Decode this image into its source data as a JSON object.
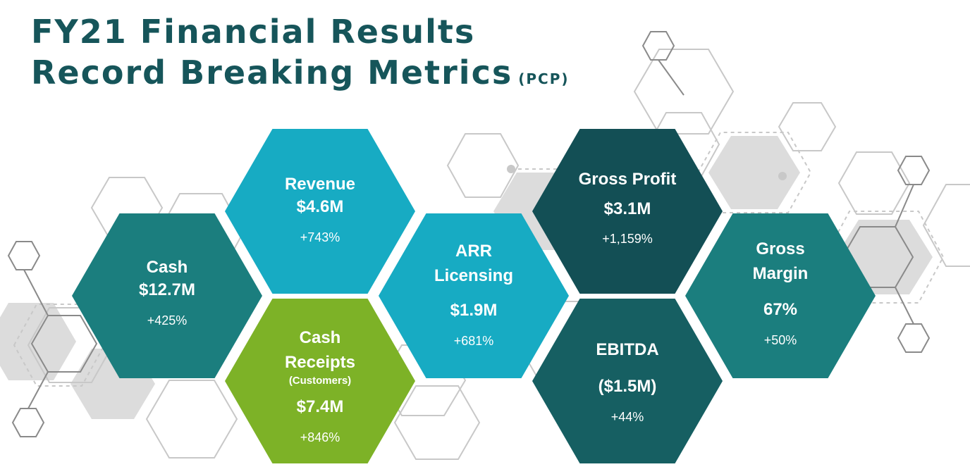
{
  "title": {
    "line1": "FY21 Financial Results",
    "line2": "Record Breaking Metrics",
    "qualifier": "(PCP)"
  },
  "colors": {
    "title": "#16555a",
    "teal": "#1b7e7e",
    "cyan": "#17abc3",
    "green": "#7db227",
    "dark_teal": "#134f55",
    "mid_teal": "#165f62"
  },
  "metrics": {
    "cash": {
      "label": "Cash",
      "value": "$12.7M",
      "change": "+425%"
    },
    "revenue": {
      "label": "Revenue",
      "value": "$4.6M",
      "change": "+743%"
    },
    "cash_receipts": {
      "label_line1": "Cash",
      "label_line2": "Receipts",
      "note": "(Customers)",
      "value": "$7.4M",
      "change": "+846%"
    },
    "arr_licensing": {
      "label_line1": "ARR",
      "label_line2": "Licensing",
      "value": "$1.9M",
      "change": "+681%"
    },
    "gross_profit": {
      "label": "Gross Profit",
      "value": "$3.1M",
      "change": "+1,159%"
    },
    "ebitda": {
      "label": "EBITDA",
      "value": "($1.5M)",
      "change": "+44%"
    },
    "gross_margin": {
      "label_line1": "Gross",
      "label_line2": "Margin",
      "value": "67%",
      "change": "+50%"
    }
  }
}
